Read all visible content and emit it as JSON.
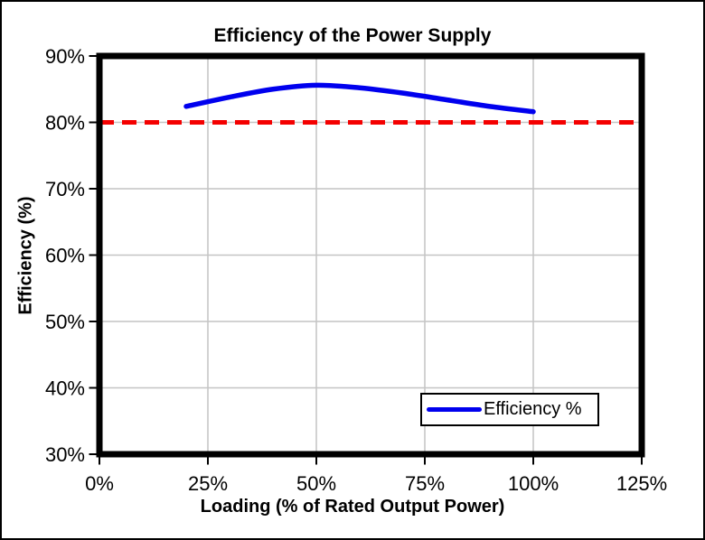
{
  "chart_data": {
    "type": "line",
    "title": "Efficiency of the Power Supply",
    "xlabel": "Loading (% of Rated Output Power)",
    "ylabel": "Efficiency (%)",
    "xlim": [
      0,
      125
    ],
    "ylim": [
      30,
      90
    ],
    "xticks": [
      0,
      25,
      50,
      75,
      100,
      125
    ],
    "xtick_labels": [
      "0%",
      "25%",
      "50%",
      "75%",
      "100%",
      "125%"
    ],
    "yticks": [
      30,
      40,
      50,
      60,
      70,
      80,
      90
    ],
    "ytick_labels": [
      "30%",
      "40%",
      "50%",
      "60%",
      "70%",
      "80%",
      "90%"
    ],
    "grid": true,
    "legend": {
      "position": "inside-bottom-right",
      "entries": [
        "Efficiency %"
      ]
    },
    "series": [
      {
        "name": "Efficiency %",
        "color": "#0000EE",
        "style": "solid",
        "width": 5.5,
        "in_legend": true,
        "points": [
          [
            20,
            82.4
          ],
          [
            30,
            83.8
          ],
          [
            40,
            85.0
          ],
          [
            50,
            85.6
          ],
          [
            60,
            85.2
          ],
          [
            70,
            84.4
          ],
          [
            80,
            83.4
          ],
          [
            90,
            82.4
          ],
          [
            100,
            81.6
          ]
        ]
      },
      {
        "name": "80%-reference-line",
        "color": "#F40000",
        "style": "dashed",
        "width": 5,
        "in_legend": false,
        "points": [
          [
            0,
            80
          ],
          [
            125,
            80
          ]
        ]
      }
    ],
    "colors": {
      "grid": "#C4C4C4",
      "plot_border": "#000000",
      "background": "#FFFFFF",
      "text": "#000000"
    }
  }
}
